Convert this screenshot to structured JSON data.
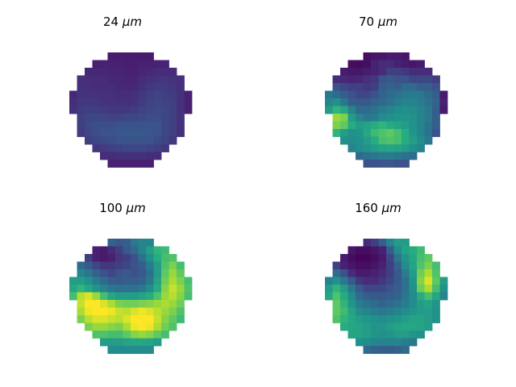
{
  "figure": {
    "panels": [
      {
        "title_value": "24",
        "title_unit": "μm"
      },
      {
        "title_value": "70",
        "title_unit": "μm"
      },
      {
        "title_value": "100",
        "title_unit": "μm"
      },
      {
        "title_value": "160",
        "title_unit": "μm"
      }
    ]
  },
  "chart_data": [
    {
      "type": "heatmap",
      "title": "24 μm",
      "colormap": "viridis",
      "mask": "circular",
      "grid_size": [
        16,
        16
      ],
      "zlim": [
        0,
        1
      ],
      "values": [
        [
          null,
          null,
          null,
          null,
          null,
          0.1,
          0.1,
          0.1,
          0.1,
          0.1,
          0.1,
          null,
          null,
          null,
          null,
          null
        ],
        [
          null,
          null,
          null,
          0.12,
          0.12,
          0.12,
          0.12,
          0.11,
          0.11,
          0.12,
          0.12,
          0.12,
          0.13,
          null,
          null,
          null
        ],
        [
          null,
          null,
          0.14,
          0.14,
          0.14,
          0.13,
          0.13,
          0.12,
          0.12,
          0.13,
          0.14,
          0.15,
          0.15,
          0.15,
          null,
          null
        ],
        [
          null,
          0.16,
          0.15,
          0.15,
          0.15,
          0.14,
          0.14,
          0.13,
          0.13,
          0.15,
          0.16,
          0.17,
          0.18,
          0.17,
          0.16,
          null
        ],
        [
          null,
          0.16,
          0.16,
          0.15,
          0.15,
          0.15,
          0.14,
          0.14,
          0.14,
          0.16,
          0.18,
          0.19,
          0.19,
          0.18,
          0.17,
          null
        ],
        [
          0.14,
          0.17,
          0.17,
          0.17,
          0.16,
          0.16,
          0.15,
          0.15,
          0.16,
          0.18,
          0.2,
          0.21,
          0.2,
          0.19,
          0.17,
          0.12
        ],
        [
          0.15,
          0.18,
          0.18,
          0.18,
          0.17,
          0.17,
          0.16,
          0.16,
          0.17,
          0.19,
          0.21,
          0.22,
          0.21,
          0.2,
          0.17,
          0.12
        ],
        [
          0.16,
          0.19,
          0.2,
          0.2,
          0.19,
          0.18,
          0.18,
          0.18,
          0.19,
          0.21,
          0.22,
          0.23,
          0.22,
          0.2,
          0.17,
          0.12
        ],
        [
          null,
          0.2,
          0.22,
          0.22,
          0.22,
          0.21,
          0.21,
          0.22,
          0.22,
          0.23,
          0.24,
          0.24,
          0.22,
          0.2,
          0.17,
          null
        ],
        [
          null,
          0.2,
          0.23,
          0.24,
          0.24,
          0.24,
          0.25,
          0.26,
          0.26,
          0.26,
          0.26,
          0.25,
          0.22,
          0.2,
          0.17,
          null
        ],
        [
          null,
          0.19,
          0.22,
          0.24,
          0.25,
          0.26,
          0.27,
          0.28,
          0.28,
          0.28,
          0.27,
          0.25,
          0.22,
          0.2,
          0.16,
          null
        ],
        [
          null,
          null,
          0.2,
          0.22,
          0.23,
          0.24,
          0.25,
          0.26,
          0.26,
          0.26,
          0.25,
          0.23,
          0.21,
          0.18,
          null,
          null
        ],
        [
          null,
          null,
          null,
          0.18,
          0.19,
          0.2,
          0.21,
          0.22,
          0.22,
          0.22,
          0.21,
          0.2,
          0.18,
          null,
          null,
          null
        ],
        [
          null,
          null,
          null,
          null,
          0.15,
          0.15,
          0.16,
          0.16,
          0.16,
          0.16,
          0.15,
          0.15,
          null,
          null,
          null,
          null
        ],
        [
          null,
          null,
          null,
          null,
          null,
          0.12,
          0.12,
          0.12,
          0.12,
          0.12,
          0.12,
          null,
          null,
          null,
          null,
          null
        ],
        [
          null,
          null,
          null,
          null,
          null,
          null,
          null,
          null,
          null,
          null,
          null,
          null,
          null,
          null,
          null,
          null
        ]
      ]
    },
    {
      "type": "heatmap",
      "title": "70 μm",
      "colormap": "viridis",
      "mask": "circular",
      "grid_size": [
        16,
        16
      ],
      "zlim": [
        0,
        1
      ],
      "values": [
        [
          null,
          null,
          null,
          null,
          null,
          0.05,
          0.08,
          0.08,
          0.1,
          0.1,
          0.08,
          null,
          null,
          null,
          null,
          null
        ],
        [
          null,
          null,
          null,
          0.05,
          0.04,
          0.05,
          0.12,
          0.15,
          0.15,
          0.12,
          0.1,
          0.08,
          0.1,
          null,
          null,
          null
        ],
        [
          null,
          null,
          0.1,
          0.08,
          0.08,
          0.1,
          0.12,
          0.15,
          0.2,
          0.2,
          0.18,
          0.15,
          0.15,
          0.15,
          null,
          null
        ],
        [
          null,
          0.15,
          0.14,
          0.13,
          0.14,
          0.16,
          0.18,
          0.25,
          0.28,
          0.25,
          0.25,
          0.22,
          0.22,
          0.22,
          0.2,
          null
        ],
        [
          null,
          0.25,
          0.22,
          0.2,
          0.2,
          0.18,
          0.2,
          0.3,
          0.32,
          0.3,
          0.35,
          0.35,
          0.3,
          0.3,
          0.25,
          null
        ],
        [
          0.4,
          0.35,
          0.3,
          0.25,
          0.22,
          0.22,
          0.25,
          0.32,
          0.35,
          0.38,
          0.4,
          0.42,
          0.4,
          0.35,
          0.3,
          0.1
        ],
        [
          0.45,
          0.5,
          0.4,
          0.3,
          0.28,
          0.28,
          0.32,
          0.35,
          0.38,
          0.42,
          0.45,
          0.45,
          0.42,
          0.38,
          0.32,
          0.12
        ],
        [
          0.55,
          0.65,
          0.6,
          0.45,
          0.35,
          0.35,
          0.38,
          0.42,
          0.45,
          0.48,
          0.5,
          0.48,
          0.45,
          0.4,
          0.3,
          0.1
        ],
        [
          null,
          0.85,
          0.8,
          0.55,
          0.45,
          0.4,
          0.42,
          0.48,
          0.5,
          0.52,
          0.52,
          0.5,
          0.45,
          0.4,
          0.3,
          null
        ],
        [
          null,
          0.8,
          0.75,
          0.62,
          0.55,
          0.58,
          0.62,
          0.65,
          0.62,
          0.58,
          0.55,
          0.5,
          0.45,
          0.38,
          0.3,
          null
        ],
        [
          null,
          0.65,
          0.55,
          0.5,
          0.52,
          0.6,
          0.68,
          0.72,
          0.75,
          0.7,
          0.62,
          0.52,
          0.45,
          0.38,
          0.25,
          null
        ],
        [
          null,
          null,
          0.5,
          0.48,
          0.5,
          0.55,
          0.62,
          0.7,
          0.72,
          0.7,
          0.62,
          0.55,
          0.48,
          0.4,
          null,
          null
        ],
        [
          null,
          null,
          null,
          0.45,
          0.48,
          0.52,
          0.55,
          0.58,
          0.6,
          0.58,
          0.55,
          0.5,
          0.45,
          null,
          null,
          null
        ],
        [
          null,
          null,
          null,
          null,
          0.35,
          0.38,
          0.4,
          0.42,
          0.42,
          0.4,
          0.38,
          0.35,
          null,
          null,
          null,
          null
        ],
        [
          null,
          null,
          null,
          null,
          null,
          0.25,
          0.25,
          0.27,
          0.27,
          0.25,
          0.25,
          null,
          null,
          null,
          null,
          null
        ],
        [
          null,
          null,
          null,
          null,
          null,
          null,
          null,
          null,
          null,
          null,
          null,
          null,
          null,
          null,
          null,
          null
        ]
      ]
    },
    {
      "type": "heatmap",
      "title": "100 μm",
      "colormap": "viridis",
      "mask": "circular",
      "grid_size": [
        16,
        16
      ],
      "zlim": [
        0,
        1
      ],
      "values": [
        [
          null,
          null,
          null,
          null,
          null,
          0.32,
          0.28,
          0.3,
          0.4,
          0.45,
          0.45,
          null,
          null,
          null,
          null,
          null
        ],
        [
          null,
          null,
          null,
          0.12,
          0.1,
          0.15,
          0.2,
          0.28,
          0.35,
          0.45,
          0.55,
          0.65,
          0.68,
          null,
          null,
          null
        ],
        [
          null,
          null,
          0.2,
          0.12,
          0.1,
          0.12,
          0.18,
          0.2,
          0.25,
          0.38,
          0.5,
          0.62,
          0.7,
          0.72,
          null,
          null
        ],
        [
          null,
          0.35,
          0.28,
          0.22,
          0.18,
          0.18,
          0.2,
          0.22,
          0.25,
          0.3,
          0.42,
          0.55,
          0.72,
          0.8,
          0.7,
          null
        ],
        [
          null,
          0.45,
          0.4,
          0.32,
          0.25,
          0.22,
          0.25,
          0.28,
          0.25,
          0.28,
          0.38,
          0.55,
          0.75,
          0.85,
          0.75,
          null
        ],
        [
          0.55,
          0.55,
          0.5,
          0.42,
          0.35,
          0.3,
          0.28,
          0.3,
          0.3,
          0.32,
          0.4,
          0.58,
          0.78,
          0.88,
          0.8,
          0.7
        ],
        [
          0.6,
          0.65,
          0.6,
          0.52,
          0.45,
          0.4,
          0.38,
          0.38,
          0.38,
          0.4,
          0.48,
          0.62,
          0.82,
          0.92,
          0.85,
          0.72
        ],
        [
          0.7,
          0.9,
          0.95,
          0.85,
          0.7,
          0.6,
          0.55,
          0.55,
          0.55,
          0.58,
          0.62,
          0.72,
          0.85,
          0.9,
          0.82,
          0.7
        ],
        [
          null,
          0.92,
          1.0,
          1.0,
          0.95,
          0.88,
          0.8,
          0.78,
          0.78,
          0.8,
          0.82,
          0.85,
          0.88,
          0.85,
          0.78,
          null
        ],
        [
          null,
          0.88,
          0.98,
          1.0,
          1.0,
          0.98,
          0.92,
          0.9,
          0.95,
          0.98,
          0.95,
          0.9,
          0.85,
          0.8,
          0.72,
          null
        ],
        [
          null,
          0.8,
          0.9,
          0.95,
          0.95,
          0.92,
          0.9,
          0.95,
          1.0,
          1.0,
          1.0,
          0.92,
          0.82,
          0.75,
          0.68,
          null
        ],
        [
          null,
          null,
          0.8,
          0.85,
          0.85,
          0.82,
          0.8,
          0.88,
          0.98,
          1.0,
          0.98,
          0.88,
          0.78,
          0.72,
          null,
          null
        ],
        [
          null,
          null,
          null,
          0.72,
          0.72,
          0.7,
          0.7,
          0.75,
          0.82,
          0.85,
          0.82,
          0.75,
          0.7,
          null,
          null,
          null
        ],
        [
          null,
          null,
          null,
          null,
          0.55,
          0.55,
          0.55,
          0.58,
          0.6,
          0.6,
          0.58,
          0.55,
          null,
          null,
          null,
          null
        ],
        [
          null,
          null,
          null,
          null,
          null,
          0.48,
          0.48,
          0.48,
          0.48,
          0.48,
          0.48,
          null,
          null,
          null,
          null,
          null
        ],
        [
          null,
          null,
          null,
          null,
          null,
          null,
          null,
          null,
          null,
          null,
          null,
          null,
          null,
          null,
          null,
          null
        ]
      ]
    },
    {
      "type": "heatmap",
      "title": "160 μm",
      "colormap": "viridis",
      "mask": "circular",
      "grid_size": [
        16,
        16
      ],
      "zlim": [
        0,
        1
      ],
      "values": [
        [
          null,
          null,
          null,
          null,
          null,
          0.15,
          0.2,
          0.3,
          0.45,
          0.55,
          0.55,
          null,
          null,
          null,
          null,
          null
        ],
        [
          null,
          null,
          null,
          0.08,
          0.05,
          0.05,
          0.08,
          0.12,
          0.3,
          0.48,
          0.58,
          0.62,
          0.68,
          null,
          null,
          null
        ],
        [
          null,
          null,
          0.1,
          0.05,
          0.02,
          0.02,
          0.05,
          0.1,
          0.22,
          0.4,
          0.52,
          0.6,
          0.7,
          0.75,
          null,
          null
        ],
        [
          null,
          0.2,
          0.12,
          0.08,
          0.05,
          0.05,
          0.08,
          0.12,
          0.2,
          0.32,
          0.48,
          0.58,
          0.72,
          0.8,
          0.7,
          null
        ],
        [
          null,
          0.35,
          0.25,
          0.15,
          0.1,
          0.1,
          0.12,
          0.15,
          0.2,
          0.28,
          0.42,
          0.55,
          0.78,
          0.88,
          0.72,
          null
        ],
        [
          0.45,
          0.5,
          0.4,
          0.28,
          0.18,
          0.15,
          0.15,
          0.18,
          0.22,
          0.28,
          0.38,
          0.52,
          0.82,
          0.95,
          0.75,
          0.55
        ],
        [
          0.55,
          0.65,
          0.55,
          0.4,
          0.28,
          0.22,
          0.22,
          0.22,
          0.25,
          0.3,
          0.38,
          0.5,
          0.78,
          0.88,
          0.7,
          0.5
        ],
        [
          0.6,
          0.72,
          0.62,
          0.48,
          0.35,
          0.3,
          0.28,
          0.28,
          0.3,
          0.32,
          0.4,
          0.48,
          0.62,
          0.7,
          0.6,
          0.45
        ],
        [
          null,
          0.75,
          0.65,
          0.52,
          0.42,
          0.38,
          0.35,
          0.32,
          0.35,
          0.38,
          0.42,
          0.48,
          0.55,
          0.58,
          0.52,
          null
        ],
        [
          null,
          0.75,
          0.68,
          0.58,
          0.48,
          0.45,
          0.42,
          0.4,
          0.42,
          0.45,
          0.48,
          0.52,
          0.55,
          0.55,
          0.5,
          null
        ],
        [
          null,
          0.72,
          0.65,
          0.6,
          0.55,
          0.52,
          0.5,
          0.48,
          0.5,
          0.52,
          0.55,
          0.58,
          0.58,
          0.55,
          0.5,
          null
        ],
        [
          null,
          null,
          0.62,
          0.6,
          0.58,
          0.55,
          0.52,
          0.52,
          0.55,
          0.58,
          0.6,
          0.6,
          0.58,
          0.55,
          null,
          null
        ],
        [
          null,
          null,
          null,
          0.58,
          0.58,
          0.55,
          0.52,
          0.5,
          0.52,
          0.55,
          0.55,
          0.52,
          0.5,
          null,
          null,
          null
        ],
        [
          null,
          null,
          null,
          null,
          0.5,
          0.48,
          0.45,
          0.45,
          0.45,
          0.45,
          0.42,
          0.4,
          null,
          null,
          null,
          null
        ],
        [
          null,
          null,
          null,
          null,
          null,
          0.35,
          0.32,
          0.3,
          0.3,
          0.32,
          0.35,
          null,
          null,
          null,
          null,
          null
        ],
        [
          null,
          null,
          null,
          null,
          null,
          null,
          null,
          null,
          null,
          null,
          null,
          null,
          null,
          null,
          null,
          null
        ]
      ]
    }
  ]
}
